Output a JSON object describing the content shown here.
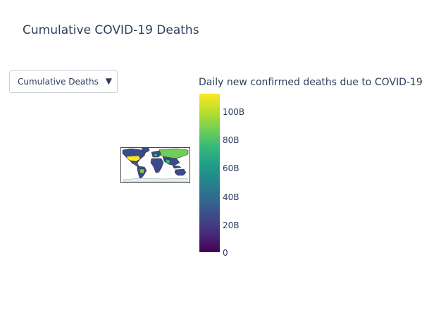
{
  "title": "Cumulative COVID-19 Deaths",
  "dropdown": {
    "selected": "Cumulative Deaths",
    "arrow": "▼"
  },
  "colorbar": {
    "title": "Daily new confirmed deaths due to COVID-19",
    "colorscale": "Viridis",
    "ticks": [
      "100B",
      "80B",
      "60B",
      "40B",
      "20B",
      "0"
    ],
    "min_color": "#440154",
    "max_color": "#fde725"
  },
  "map": {
    "projection": "equirectangular",
    "land_default_color": "#3b4b8a",
    "highlight_high_color": "#fde725",
    "highlight_mid_color": "#6ece58",
    "antarctica_color": "#e6ecf2"
  }
}
